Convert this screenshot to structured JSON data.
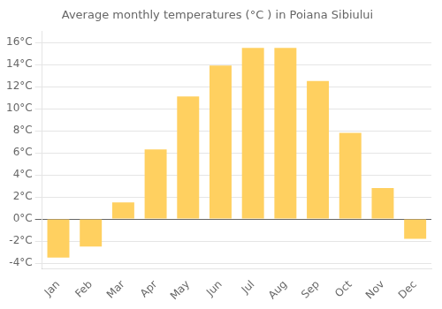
{
  "chart_data": {
    "type": "bar",
    "title": "Average monthly temperatures (°C ) in Poiana Sibiului",
    "categories": [
      "Jan",
      "Feb",
      "Mar",
      "Apr",
      "May",
      "Jun",
      "Jul",
      "Aug",
      "Sep",
      "Oct",
      "Nov",
      "Dec"
    ],
    "values": [
      -3.5,
      -2.5,
      1.5,
      6.3,
      11.1,
      13.9,
      15.5,
      15.5,
      12.5,
      7.8,
      2.8,
      -1.8
    ],
    "color": "#FFD060",
    "ylim": [
      -4.5,
      17.0
    ],
    "yticks": [
      {
        "value": -4,
        "label": "-4°C"
      },
      {
        "value": -2,
        "label": "-2°C"
      },
      {
        "value": 0,
        "label": "0°C"
      },
      {
        "value": 2,
        "label": "2°C"
      },
      {
        "value": 4,
        "label": "4°C"
      },
      {
        "value": 6,
        "label": "6°C"
      },
      {
        "value": 8,
        "label": "8°C"
      },
      {
        "value": 10,
        "label": "10°C"
      },
      {
        "value": 12,
        "label": "12°C"
      },
      {
        "value": 14,
        "label": "14°C"
      },
      {
        "value": 16,
        "label": "16°C"
      }
    ],
    "grid": true
  }
}
